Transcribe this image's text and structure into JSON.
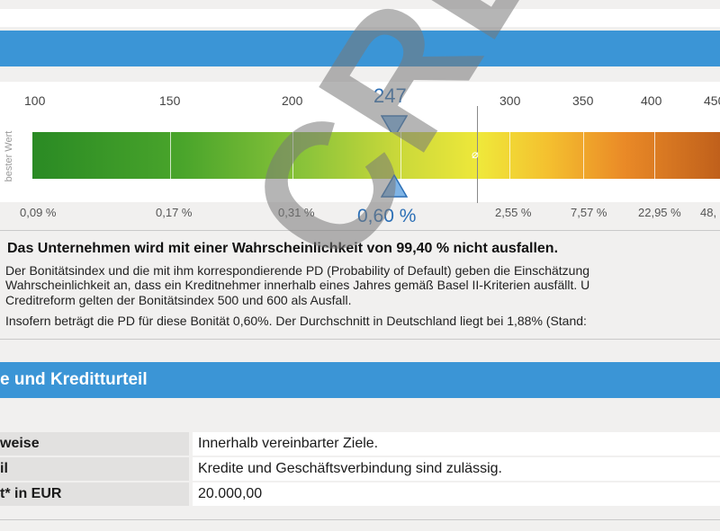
{
  "scale": {
    "side_label": "bester Wert",
    "top_ticks": [
      "100",
      "150",
      "200",
      "300",
      "350",
      "400",
      "450"
    ],
    "bottom_ticks": [
      "0,09 %",
      "0,17 %",
      "0,31 %",
      "2,55 %",
      "7,57 %",
      "22,95 %",
      "48,"
    ],
    "marker_value": "247",
    "marker_pd": "0,60 %",
    "average_symbol": "⌀"
  },
  "summary": {
    "headline": "Das Unternehmen wird mit einer Wahrscheinlichkeit von 99,40 % nicht ausfallen.",
    "para_line1": "Der Bonitätsindex und die mit ihm korrespondierende PD (Probability of Default) geben die Einschätzung",
    "para_line2": "Wahrscheinlichkeit an, dass ein Kreditnehmer innerhalb eines Jahres gemäß Basel II-Kriterien ausfällt. U",
    "para_line3": "Creditreform gelten der Bonitätsindex 500 und 600 als Ausfall.",
    "para_line4": "Insofern beträgt die PD für diese Bonität 0,60%. Der Durchschnitt in Deutschland liegt bei 1,88% (Stand:"
  },
  "section2": {
    "title": "e und Kreditturteil"
  },
  "table": [
    {
      "label": "weise",
      "value": "Innerhalb vereinbarter Ziele."
    },
    {
      "label": "il",
      "value": "Kredite und Geschäftsverbindung sind zulässig."
    },
    {
      "label": "t* in EUR",
      "value": "20.000,00"
    }
  ],
  "watermark": "CREF",
  "colors": {
    "header_blue": "#3b95d6",
    "marker_blue": "#2c6fb6"
  }
}
